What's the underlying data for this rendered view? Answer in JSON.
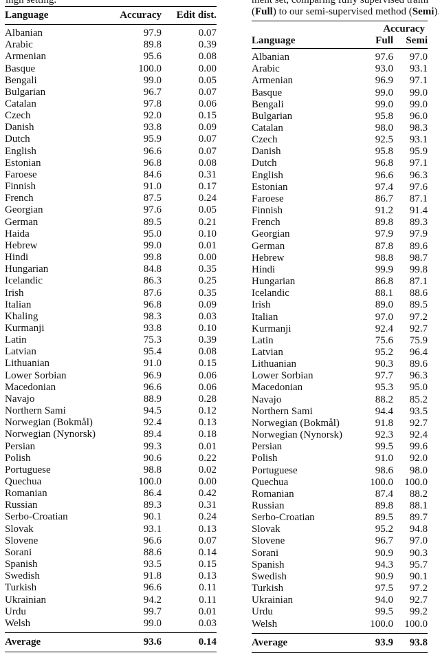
{
  "left_fragment": "ingh setting.",
  "right_fragment_1": "ment set, comparing fully supervised traini",
  "right_fragment_2": {
    "pre": "(",
    "full": "Full",
    "mid": ") to our semi-supervised method (",
    "semi": "Semi",
    "post": ")."
  },
  "left_table": {
    "headers": [
      "Language",
      "Accuracy",
      "Edit dist."
    ],
    "rows": [
      [
        "Albanian",
        "97.9",
        "0.07"
      ],
      [
        "Arabic",
        "89.8",
        "0.39"
      ],
      [
        "Armenian",
        "95.6",
        "0.08"
      ],
      [
        "Basque",
        "100.0",
        "0.00"
      ],
      [
        "Bengali",
        "99.0",
        "0.05"
      ],
      [
        "Bulgarian",
        "96.7",
        "0.07"
      ],
      [
        "Catalan",
        "97.8",
        "0.06"
      ],
      [
        "Czech",
        "92.0",
        "0.15"
      ],
      [
        "Danish",
        "93.8",
        "0.09"
      ],
      [
        "Dutch",
        "95.9",
        "0.07"
      ],
      [
        "English",
        "96.6",
        "0.07"
      ],
      [
        "Estonian",
        "96.8",
        "0.08"
      ],
      [
        "Faroese",
        "84.6",
        "0.31"
      ],
      [
        "Finnish",
        "91.0",
        "0.17"
      ],
      [
        "French",
        "87.5",
        "0.24"
      ],
      [
        "Georgian",
        "97.6",
        "0.05"
      ],
      [
        "German",
        "89.5",
        "0.21"
      ],
      [
        "Haida",
        "95.0",
        "0.10"
      ],
      [
        "Hebrew",
        "99.0",
        "0.01"
      ],
      [
        "Hindi",
        "99.8",
        "0.00"
      ],
      [
        "Hungarian",
        "84.8",
        "0.35"
      ],
      [
        "Icelandic",
        "86.3",
        "0.25"
      ],
      [
        "Irish",
        "87.6",
        "0.35"
      ],
      [
        "Italian",
        "96.8",
        "0.09"
      ],
      [
        "Khaling",
        "98.3",
        "0.03"
      ],
      [
        "Kurmanji",
        "93.8",
        "0.10"
      ],
      [
        "Latin",
        "75.3",
        "0.39"
      ],
      [
        "Latvian",
        "95.4",
        "0.08"
      ],
      [
        "Lithuanian",
        "91.0",
        "0.15"
      ],
      [
        "Lower Sorbian",
        "96.9",
        "0.06"
      ],
      [
        "Macedonian",
        "96.6",
        "0.06"
      ],
      [
        "Navajo",
        "88.9",
        "0.28"
      ],
      [
        "Northern Sami",
        "94.5",
        "0.12"
      ],
      [
        "Norwegian (Bokmål)",
        "92.4",
        "0.13"
      ],
      [
        "Norwegian (Nynorsk)",
        "89.4",
        "0.18"
      ],
      [
        "Persian",
        "99.3",
        "0.01"
      ],
      [
        "Polish",
        "90.6",
        "0.22"
      ],
      [
        "Portuguese",
        "98.8",
        "0.02"
      ],
      [
        "Quechua",
        "100.0",
        "0.00"
      ],
      [
        "Romanian",
        "86.4",
        "0.42"
      ],
      [
        "Russian",
        "89.3",
        "0.31"
      ],
      [
        "Serbo-Croatian",
        "90.1",
        "0.24"
      ],
      [
        "Slovak",
        "93.1",
        "0.13"
      ],
      [
        "Slovene",
        "96.6",
        "0.07"
      ],
      [
        "Sorani",
        "88.6",
        "0.14"
      ],
      [
        "Spanish",
        "93.5",
        "0.15"
      ],
      [
        "Swedish",
        "91.8",
        "0.13"
      ],
      [
        "Turkish",
        "96.6",
        "0.11"
      ],
      [
        "Ukrainian",
        "94.2",
        "0.11"
      ],
      [
        "Urdu",
        "99.7",
        "0.01"
      ],
      [
        "Welsh",
        "99.0",
        "0.03"
      ]
    ],
    "average": [
      "Average",
      "93.6",
      "0.14"
    ]
  },
  "right_table": {
    "group_header": "Accuracy",
    "headers": [
      "Language",
      "Full",
      "Semi"
    ],
    "rows": [
      [
        "Albanian",
        "97.6",
        "97.0"
      ],
      [
        "Arabic",
        "93.0",
        "93.1"
      ],
      [
        "Armenian",
        "96.9",
        "97.1"
      ],
      [
        "Basque",
        "99.0",
        "99.0"
      ],
      [
        "Bengali",
        "99.0",
        "99.0"
      ],
      [
        "Bulgarian",
        "95.8",
        "96.0"
      ],
      [
        "Catalan",
        "98.0",
        "98.3"
      ],
      [
        "Czech",
        "92.5",
        "93.1"
      ],
      [
        "Danish",
        "95.8",
        "95.9"
      ],
      [
        "Dutch",
        "96.8",
        "97.1"
      ],
      [
        "English",
        "96.6",
        "96.3"
      ],
      [
        "Estonian",
        "97.4",
        "97.6"
      ],
      [
        "Faroese",
        "86.7",
        "87.1"
      ],
      [
        "Finnish",
        "91.2",
        "91.4"
      ],
      [
        "French",
        "89.8",
        "89.3"
      ],
      [
        "Georgian",
        "97.9",
        "97.9"
      ],
      [
        "German",
        "87.8",
        "89.6"
      ],
      [
        "Hebrew",
        "98.8",
        "98.7"
      ],
      [
        "Hindi",
        "99.9",
        "99.8"
      ],
      [
        "Hungarian",
        "86.8",
        "87.1"
      ],
      [
        "Icelandic",
        "88.1",
        "88.6"
      ],
      [
        "Irish",
        "89.0",
        "89.5"
      ],
      [
        "Italian",
        "97.0",
        "97.2"
      ],
      [
        "Kurmanji",
        "92.4",
        "92.7"
      ],
      [
        "Latin",
        "75.6",
        "75.9"
      ],
      [
        "Latvian",
        "95.2",
        "96.4"
      ],
      [
        "Lithuanian",
        "90.3",
        "89.6"
      ],
      [
        "Lower Sorbian",
        "97.7",
        "96.3"
      ],
      [
        "Macedonian",
        "95.3",
        "95.0"
      ],
      [
        "Navajo",
        "88.2",
        "85.2"
      ],
      [
        "Northern Sami",
        "94.4",
        "93.5"
      ],
      [
        "Norwegian (Bokmål)",
        "91.8",
        "92.7"
      ],
      [
        "Norwegian (Nynorsk)",
        "92.3",
        "92.4"
      ],
      [
        "Persian",
        "99.5",
        "99.6"
      ],
      [
        "Polish",
        "91.0",
        "92.0"
      ],
      [
        "Portuguese",
        "98.6",
        "98.0"
      ],
      [
        "Quechua",
        "100.0",
        "100.0"
      ],
      [
        "Romanian",
        "87.4",
        "88.2"
      ],
      [
        "Russian",
        "89.8",
        "88.1"
      ],
      [
        "Serbo-Croatian",
        "89.5",
        "89.7"
      ],
      [
        "Slovak",
        "95.2",
        "94.8"
      ],
      [
        "Slovene",
        "96.7",
        "97.0"
      ],
      [
        "Sorani",
        "90.9",
        "90.3"
      ],
      [
        "Spanish",
        "94.3",
        "95.7"
      ],
      [
        "Swedish",
        "90.9",
        "90.1"
      ],
      [
        "Turkish",
        "97.5",
        "97.2"
      ],
      [
        "Ukrainian",
        "94.0",
        "92.7"
      ],
      [
        "Urdu",
        "99.5",
        "99.2"
      ],
      [
        "Welsh",
        "100.0",
        "100.0"
      ]
    ],
    "average": [
      "Average",
      "93.9",
      "93.8"
    ]
  }
}
